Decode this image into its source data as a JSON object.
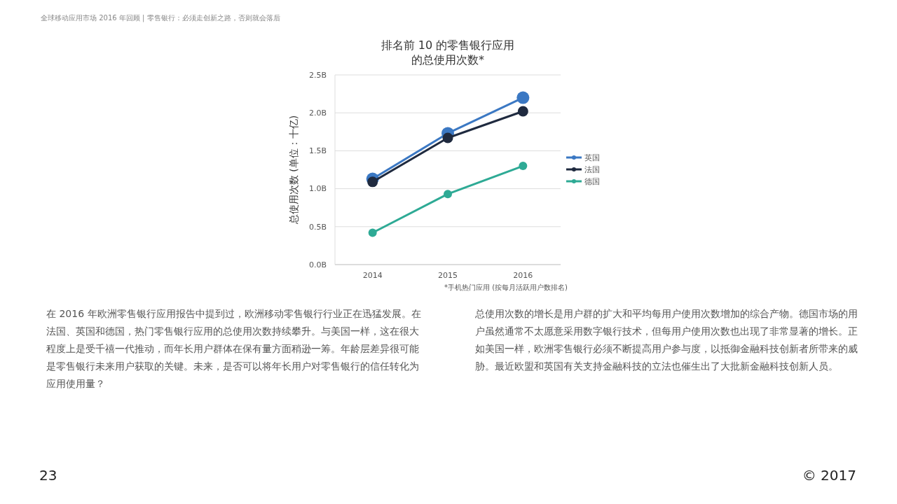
{
  "chart_data": {
    "type": "line",
    "title": "排名前 10 的零售银行应用的总使用次数*",
    "ylabel": "总使用次数 (单位：十亿)",
    "categories": [
      "2014",
      "2015",
      "2016"
    ],
    "series": [
      {
        "name": "英国",
        "color": "#3b78c3",
        "values": [
          1.13,
          1.73,
          2.2
        ]
      },
      {
        "name": "法国",
        "color": "#1f2a3f",
        "values": [
          1.09,
          1.67,
          2.02
        ]
      },
      {
        "name": "德国",
        "color": "#2eaa95",
        "values": [
          0.42,
          0.93,
          1.3
        ]
      }
    ],
    "ylim": [
      0,
      2.5
    ],
    "yticks": [
      {
        "value": 0,
        "label": "0.0B"
      },
      {
        "value": 0.5,
        "label": "0.5B"
      },
      {
        "value": 1,
        "label": "1.0B"
      },
      {
        "value": 1.5,
        "label": "1.5B"
      },
      {
        "value": 2,
        "label": "2.0B"
      },
      {
        "value": 2.5,
        "label": "2.5B"
      }
    ],
    "grid": "y",
    "legend": "right",
    "marker": "circle",
    "line_style": "solid",
    "annotations": [
      "全球移动应用市场 2016 年回顾  |  零售银行：必须走创新之路，否则就会落后",
      "*手机热门应用 (按每月活跃用户数排名)",
      "在 2016 年欧洲零售银行应用报告中提到过，欧洲移动零售银行行业正在迅猛发展。在法国、英国和德国，热门零售银行应用的总使用次数持续攀升。与美国一样，这在很大程度上是受千禧一代推动，而年长用户群体在保有量方面稍逊一筹。年龄层差异很可能是零售银行未来用户获取的关键。未来，是否可以将年长用户对零售银行的信任转化为应用使用量？",
      "总使用次数的增长是用户群的扩大和平均每用户使用次数增加的综合产物。德国市场的用户虽然通常不太愿意采用数字银行技术，但每用户使用次数也出现了非常显著的增长。正如美国一样，欧洲零售银行必须不断提高用户参与度，以抵御金融科技创新者所带来的威胁。最近欧盟和英国有关支持金融科技的立法也催生出了大批新金融科技创新人员。",
      "23",
      "© 2017"
    ]
  }
}
